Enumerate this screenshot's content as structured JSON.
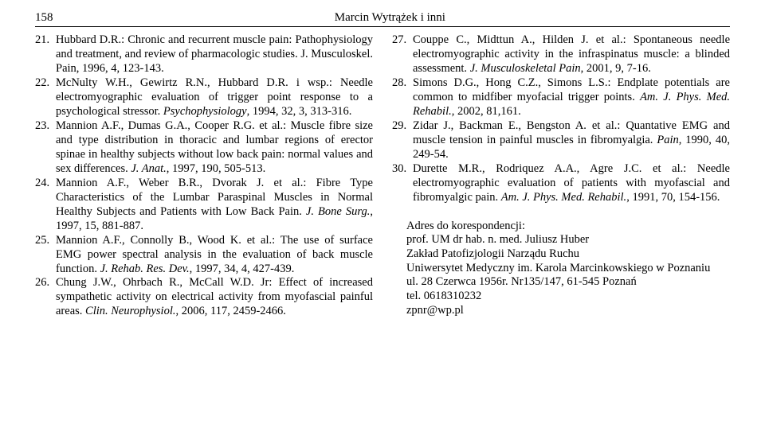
{
  "header": {
    "page_number": "158",
    "running_title": "Marcin Wytrążek i inni"
  },
  "refs_left": [
    {
      "n": "21.",
      "text": "Hubbard D.R.: Chronic and recurrent muscle pain: Patho­physiology and treatment, and review of pharmacologic studies. J. Musculoskel. Pain, 1996, 4, 123-143."
    },
    {
      "n": "22.",
      "text": "McNulty W.H., Gewirtz R.N., Hubbard D.R. i wsp.: Nee­dle electromyographic evaluation of trigger point response to a psychological stressor. <span class=\"em\">Psychophysiology</span>, 1994, 32, 3, 313-316."
    },
    {
      "n": "23.",
      "text": "Mannion A.F., Dumas G.A., Cooper R.G. et al.: Muscle fibre size and type distribution in thoracic and lumbar re­gions of erector spinae in healthy subjects without low back pain: normal values and sex differences. <span class=\"em\">J. Anat.</span>, 1997, 190, 505-513."
    },
    {
      "n": "24.",
      "text": "Mannion A.F., Weber B.R., Dvorak J. et al.: Fibre Type Characteristics of the Lumbar Paraspinal Muscles in Nor­mal Healthy Subjects and Patients with Low Back Pain. <span class=\"em\">J. Bone Surg.</span>, 1997, 15, 881-887."
    },
    {
      "n": "25.",
      "text": "Mannion A.F., Connolly B., Wood K. et al.: The use of surface EMG power spectral analysis in the evaluation of back muscle function. <span class=\"em\">J. Rehab. Res. Dev.</span>, 1997, 34, 4, 427-439."
    },
    {
      "n": "26.",
      "text": "Chung J.W., Ohrbach R., McCall W.D. Jr: Effect of in­creased sympathetic activity on electrical activity from myofascial painful areas. <span class=\"em\">Clin. Neurophysiol.</span>, 2006, 117, 2459-2466."
    }
  ],
  "refs_right": [
    {
      "n": "27.",
      "text": "Couppe C., Midttun A., Hilden J. et al.: Spontaneous nee­dle electromyographic activity in the infraspinatus muscle: a blinded assessment. <span class=\"em\">J. Musculoskeletal Pain</span>, 2001, 9, 7-16."
    },
    {
      "n": "28.",
      "text": "Simons D.G., Hong C.Z., Simons L.S.: Endplate potentials are common to midfiber myofacial trigger points. <span class=\"em\">Am. J. Phys. Med. Rehabil.</span>, 2002, 81,161."
    },
    {
      "n": "29.",
      "text": "Zidar J., Backman E., Bengston A. et al.: Quantative EMG and muscle tension in painful muscles in fibromyalgia. <span class=\"em\">Pain</span>, 1990, 40, 249-54."
    },
    {
      "n": "30.",
      "text": "Durette M.R., Rodriquez A.A., Agre J.C. et al.: Needle electromyographic evaluation of patients with myofascial and fibromyalgic pain. <span class=\"em\">Am. J. Phys. Med. Rehabil.</span>, 1991, 70, 154-156."
    }
  ],
  "address": {
    "line1": "Adres do korespondencji:",
    "line2": "prof. UM dr hab. n. med. Juliusz Huber",
    "line3": "Zakład Patofizjologii Narządu Ruchu",
    "line4": "Uniwersytet Medyczny im. Karola Marcinkowskiego w Poznaniu",
    "line5": "ul. 28 Czerwca 1956r. Nr135/147, 61-545 Poznań",
    "line6": "tel. 0618310232",
    "line7": "zpnr@wp.pl"
  }
}
